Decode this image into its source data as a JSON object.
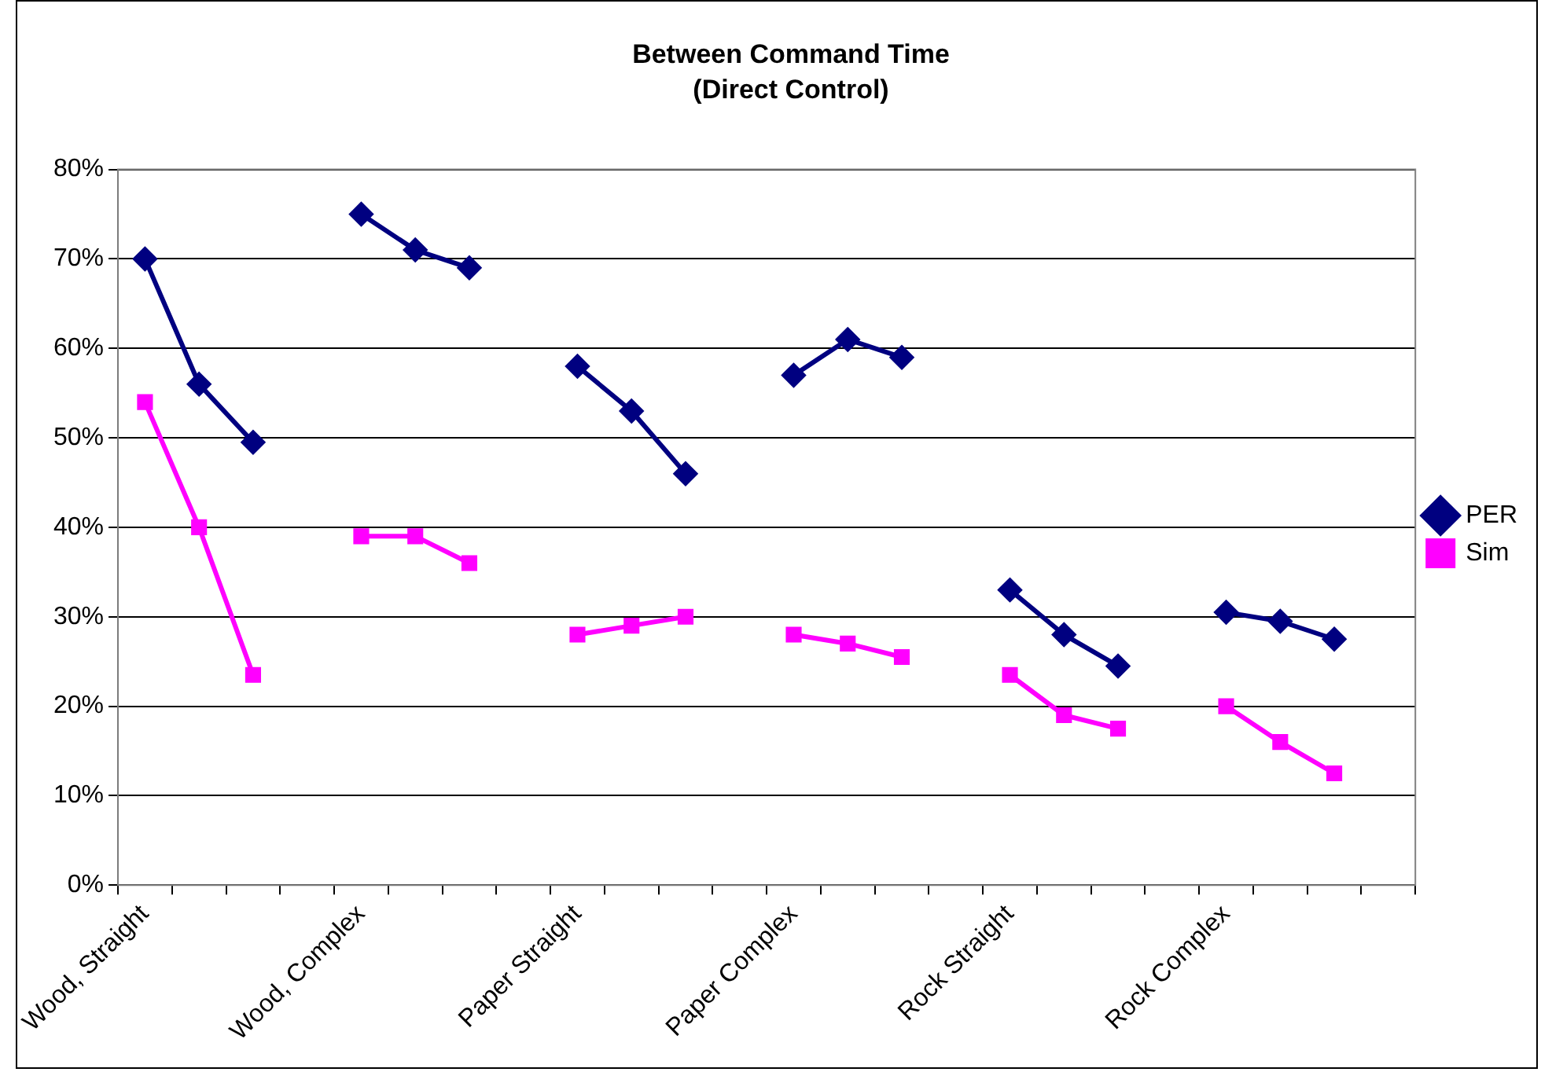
{
  "chart_data": {
    "type": "line",
    "title": "Between Command Time",
    "subtitle": "(Direct Control)",
    "categories": [
      "Wood, Straight",
      null,
      null,
      null,
      "Wood, Complex",
      null,
      null,
      null,
      "Paper Straight",
      null,
      null,
      null,
      "Paper Complex",
      null,
      null,
      null,
      "Rock Straight",
      null,
      null,
      null,
      "Rock Complex",
      null,
      null,
      null
    ],
    "series": [
      {
        "name": "PER",
        "color": "#000080",
        "marker": "diamond",
        "values": [
          70,
          56,
          49.5,
          null,
          75,
          71,
          69,
          null,
          58,
          53,
          46,
          null,
          57,
          61,
          59,
          null,
          33,
          28,
          24.5,
          null,
          30.5,
          29.5,
          27.5,
          null
        ]
      },
      {
        "name": "Sim",
        "color": "#ff00ff",
        "marker": "square",
        "values": [
          54,
          40,
          23.5,
          null,
          39,
          39,
          36,
          null,
          28,
          29,
          30,
          null,
          28,
          27,
          25.5,
          null,
          23.5,
          19,
          17.5,
          null,
          20,
          16,
          12.5,
          null
        ]
      }
    ],
    "ylim": [
      0,
      80
    ],
    "yticks": [
      {
        "value": 0,
        "label": "0%"
      },
      {
        "value": 10,
        "label": "10%"
      },
      {
        "value": 20,
        "label": "20%"
      },
      {
        "value": 30,
        "label": "30%"
      },
      {
        "value": 40,
        "label": "40%"
      },
      {
        "value": 50,
        "label": "50%"
      },
      {
        "value": 60,
        "label": "60%"
      },
      {
        "value": 70,
        "label": "70%"
      },
      {
        "value": 80,
        "label": "80%"
      }
    ],
    "grid": "y",
    "legend": "right"
  }
}
